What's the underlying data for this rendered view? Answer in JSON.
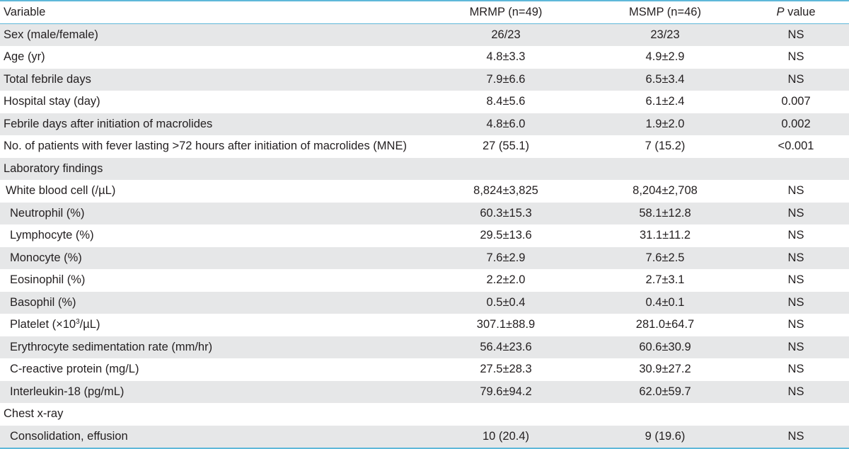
{
  "header": {
    "variable": "Variable",
    "mrmp": "MRMP (n=49)",
    "msmp": "MSMP (n=46)",
    "p_italic": "P",
    "p_rest": " value"
  },
  "rows": [
    {
      "label": "Sex (male/female)",
      "mrmp": "26/23",
      "msmp": "23/23",
      "p": "NS"
    },
    {
      "label": "Age (yr)",
      "mrmp": "4.8±3.3",
      "msmp": "4.9±2.9",
      "p": "NS"
    },
    {
      "label": "Total febrile days",
      "mrmp": "7.9±6.6",
      "msmp": "6.5±3.4",
      "p": "NS"
    },
    {
      "label": "Hospital stay (day)",
      "mrmp": "8.4±5.6",
      "msmp": "6.1±2.4",
      "p": "0.007"
    },
    {
      "label": "Febrile days after initiation of macrolides",
      "mrmp": "4.8±6.0",
      "msmp": "1.9±2.0",
      "p": "0.002"
    },
    {
      "label": "No. of patients with fever lasting >72 hours after initiation of macrolides (MNE)",
      "mrmp": "27 (55.1)",
      "msmp": "7 (15.2)",
      "p": "<0.001"
    },
    {
      "label": "Laboratory findings"
    },
    {
      "label": "White blood cell (/µL)",
      "mrmp": "8,824±3,825",
      "msmp": "8,204±2,708",
      "p": "NS"
    },
    {
      "label": "Neutrophil (%)",
      "mrmp": "60.3±15.3",
      "msmp": "58.1±12.8",
      "p": "NS"
    },
    {
      "label": "Lymphocyte (%)",
      "mrmp": "29.5±13.6",
      "msmp": "31.1±11.2",
      "p": "NS"
    },
    {
      "label": "Monocyte (%)",
      "mrmp": "7.6±2.9",
      "msmp": "7.6±2.5",
      "p": "NS"
    },
    {
      "label": "Eosinophil (%)",
      "mrmp": "2.2±2.0",
      "msmp": "2.7±3.1",
      "p": "NS"
    },
    {
      "label": "Basophil (%)",
      "mrmp": "0.5±0.4",
      "msmp": "0.4±0.1",
      "p": "NS"
    },
    {
      "label_pre": "Platelet (×10",
      "label_sup": "3",
      "label_post": "/µL)",
      "mrmp": "307.1±88.9",
      "msmp": "281.0±64.7",
      "p": "NS"
    },
    {
      "label": "Erythrocyte sedimentation rate (mm/hr)",
      "mrmp": "56.4±23.6",
      "msmp": "60.6±30.9",
      "p": "NS"
    },
    {
      "label": "C-reactive protein (mg/L)",
      "mrmp": "27.5±28.3",
      "msmp": "30.9±27.2",
      "p": "NS"
    },
    {
      "label": "Interleukin-18 (pg/mL)",
      "mrmp": "79.6±94.2",
      "msmp": "62.0±59.7",
      "p": "NS"
    },
    {
      "label": "Chest x-ray"
    },
    {
      "label": "Consolidation, effusion",
      "mrmp": "10 (20.4)",
      "msmp": "9 (19.6)",
      "p": "NS"
    }
  ]
}
